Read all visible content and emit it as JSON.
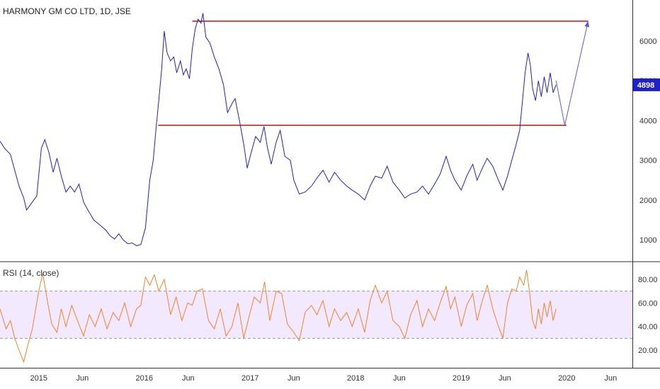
{
  "header": {
    "title": "HARMONY GM CO LTD, 1D, JSE"
  },
  "indicator": {
    "title": "RSI (14, close)"
  },
  "colors": {
    "price_line": "#2020c8",
    "level_line": "#e8191b",
    "projection": "#5b5bd6",
    "rsi_line": "#f0822e",
    "rsi_band": "#f3e9ff",
    "badge": "#2020c8",
    "divider": "#333333",
    "axis": "#333333",
    "band_dash": "#9a9a9a"
  },
  "x_axis_labels": [
    "2015",
    "Jun",
    "2016",
    "Jun",
    "2017",
    "Jun",
    "2018",
    "Jun",
    "2019",
    "Jun",
    "2020",
    "Jun"
  ],
  "price_axis_labels": [
    "6000",
    "5000",
    "4000",
    "3000",
    "2000",
    "1000"
  ],
  "rsi_axis_labels": [
    "80.00",
    "60.00",
    "40.00",
    "20.00"
  ],
  "last_price_badge": "4898",
  "chart_data": [
    {
      "type": "line",
      "title": "HARMONY GM CO LTD, 1D, JSE",
      "xlabel": "",
      "ylabel": "",
      "ylim": [
        500,
        6900
      ],
      "x_range": [
        "2014-08-20",
        "2020-08-15"
      ],
      "grid": false,
      "series": [
        {
          "values": [
            [
              "2014-08-20",
              3480
            ],
            [
              "2014-09-05",
              3300
            ],
            [
              "2014-09-25",
              3150
            ],
            [
              "2014-10-10",
              2750
            ],
            [
              "2014-10-25",
              2350
            ],
            [
              "2014-11-10",
              2050
            ],
            [
              "2014-11-20",
              1750
            ],
            [
              "2014-12-10",
              1950
            ],
            [
              "2014-12-25",
              2100
            ],
            [
              "2015-01-10",
              3300
            ],
            [
              "2015-01-22",
              3520
            ],
            [
              "2015-02-05",
              3200
            ],
            [
              "2015-02-20",
              2700
            ],
            [
              "2015-03-05",
              3050
            ],
            [
              "2015-03-20",
              2600
            ],
            [
              "2015-04-05",
              2200
            ],
            [
              "2015-04-20",
              2350
            ],
            [
              "2015-05-05",
              2200
            ],
            [
              "2015-05-20",
              2400
            ],
            [
              "2015-06-05",
              1950
            ],
            [
              "2015-06-20",
              1750
            ],
            [
              "2015-07-10",
              1500
            ],
            [
              "2015-07-30",
              1380
            ],
            [
              "2015-08-20",
              1250
            ],
            [
              "2015-09-05",
              1100
            ],
            [
              "2015-09-20",
              1020
            ],
            [
              "2015-10-05",
              1150
            ],
            [
              "2015-10-20",
              1000
            ],
            [
              "2015-11-05",
              900
            ],
            [
              "2015-11-20",
              920
            ],
            [
              "2015-12-05",
              850
            ],
            [
              "2015-12-20",
              880
            ],
            [
              "2016-01-05",
              1300
            ],
            [
              "2016-01-20",
              2500
            ],
            [
              "2016-02-01",
              3000
            ],
            [
              "2016-02-12",
              3900
            ],
            [
              "2016-02-20",
              4500
            ],
            [
              "2016-03-01",
              5300
            ],
            [
              "2016-03-10",
              6250
            ],
            [
              "2016-03-20",
              5700
            ],
            [
              "2016-04-01",
              5500
            ],
            [
              "2016-04-12",
              5600
            ],
            [
              "2016-04-22",
              5200
            ],
            [
              "2016-05-05",
              5500
            ],
            [
              "2016-05-15",
              5150
            ],
            [
              "2016-05-25",
              5300
            ],
            [
              "2016-06-05",
              5050
            ],
            [
              "2016-06-15",
              5800
            ],
            [
              "2016-06-25",
              6300
            ],
            [
              "2016-07-05",
              6550
            ],
            [
              "2016-07-15",
              6450
            ],
            [
              "2016-07-22",
              6700
            ],
            [
              "2016-08-01",
              6100
            ],
            [
              "2016-08-15",
              5950
            ],
            [
              "2016-08-30",
              5600
            ],
            [
              "2016-09-15",
              5300
            ],
            [
              "2016-10-01",
              4900
            ],
            [
              "2016-10-15",
              4200
            ],
            [
              "2016-11-01",
              4450
            ],
            [
              "2016-11-10",
              4550
            ],
            [
              "2016-11-25",
              4000
            ],
            [
              "2016-12-10",
              3400
            ],
            [
              "2016-12-22",
              2800
            ],
            [
              "2017-01-05",
              3200
            ],
            [
              "2017-01-20",
              3600
            ],
            [
              "2017-02-05",
              3450
            ],
            [
              "2017-02-18",
              3850
            ],
            [
              "2017-03-01",
              3350
            ],
            [
              "2017-03-15",
              2900
            ],
            [
              "2017-04-01",
              3450
            ],
            [
              "2017-04-15",
              3750
            ],
            [
              "2017-05-01",
              3100
            ],
            [
              "2017-05-20",
              3000
            ],
            [
              "2017-06-01",
              2500
            ],
            [
              "2017-06-20",
              2150
            ],
            [
              "2017-07-10",
              2200
            ],
            [
              "2017-08-01",
              2350
            ],
            [
              "2017-08-20",
              2550
            ],
            [
              "2017-09-10",
              2750
            ],
            [
              "2017-10-01",
              2450
            ],
            [
              "2017-10-20",
              2700
            ],
            [
              "2017-11-10",
              2500
            ],
            [
              "2017-12-01",
              2350
            ],
            [
              "2017-12-20",
              2250
            ],
            [
              "2018-01-10",
              2150
            ],
            [
              "2018-02-01",
              2000
            ],
            [
              "2018-02-20",
              2350
            ],
            [
              "2018-03-10",
              2600
            ],
            [
              "2018-04-01",
              2550
            ],
            [
              "2018-04-20",
              2850
            ],
            [
              "2018-05-10",
              2450
            ],
            [
              "2018-06-01",
              2250
            ],
            [
              "2018-06-20",
              2050
            ],
            [
              "2018-07-10",
              2150
            ],
            [
              "2018-08-01",
              2200
            ],
            [
              "2018-08-20",
              2350
            ],
            [
              "2018-09-10",
              2150
            ],
            [
              "2018-10-01",
              2400
            ],
            [
              "2018-10-20",
              2650
            ],
            [
              "2018-11-10",
              3100
            ],
            [
              "2018-11-25",
              2750
            ],
            [
              "2018-12-10",
              2500
            ],
            [
              "2019-01-01",
              2250
            ],
            [
              "2019-01-20",
              2600
            ],
            [
              "2019-02-10",
              2900
            ],
            [
              "2019-02-25",
              2500
            ],
            [
              "2019-03-15",
              2800
            ],
            [
              "2019-04-01",
              3050
            ],
            [
              "2019-04-20",
              2850
            ],
            [
              "2019-05-10",
              2500
            ],
            [
              "2019-05-25",
              2250
            ],
            [
              "2019-06-10",
              2600
            ],
            [
              "2019-06-25",
              3000
            ],
            [
              "2019-07-10",
              3400
            ],
            [
              "2019-07-22",
              3750
            ],
            [
              "2019-08-01",
              4500
            ],
            [
              "2019-08-10",
              5200
            ],
            [
              "2019-08-20",
              5700
            ],
            [
              "2019-08-28",
              5400
            ],
            [
              "2019-09-05",
              4800
            ],
            [
              "2019-09-15",
              4500
            ],
            [
              "2019-09-25",
              5000
            ],
            [
              "2019-10-05",
              4600
            ],
            [
              "2019-10-15",
              5100
            ],
            [
              "2019-10-25",
              4700
            ],
            [
              "2019-11-05",
              5200
            ],
            [
              "2019-11-15",
              4700
            ],
            [
              "2019-11-25",
              4898
            ]
          ]
        }
      ],
      "levels": [
        {
          "value": 6500,
          "from": "2016-06-15",
          "to": "2020-03-15"
        },
        {
          "value": 3880,
          "from": "2016-02-18",
          "to": "2019-12-31"
        }
      ],
      "projection_path": [
        [
          "2019-11-25",
          5000
        ],
        [
          "2019-12-25",
          3880
        ],
        [
          "2020-03-15",
          6500
        ]
      ]
    },
    {
      "type": "line",
      "title": "RSI (14, close)",
      "xlabel": "",
      "ylabel": "",
      "ylim": [
        0,
        100
      ],
      "x_range": [
        "2014-08-20",
        "2020-08-15"
      ],
      "band": [
        30,
        70
      ],
      "grid": false,
      "series": [
        {
          "values": [
            [
              "2014-08-20",
              55
            ],
            [
              "2014-09-10",
              38
            ],
            [
              "2014-09-25",
              45
            ],
            [
              "2014-10-10",
              30
            ],
            [
              "2014-10-25",
              20
            ],
            [
              "2014-11-10",
              10
            ],
            [
              "2014-11-25",
              25
            ],
            [
              "2014-12-10",
              38
            ],
            [
              "2015-01-01",
              70
            ],
            [
              "2015-01-15",
              85
            ],
            [
              "2015-02-01",
              60
            ],
            [
              "2015-02-15",
              42
            ],
            [
              "2015-03-05",
              35
            ],
            [
              "2015-03-20",
              55
            ],
            [
              "2015-04-05",
              40
            ],
            [
              "2015-04-25",
              58
            ],
            [
              "2015-05-15",
              45
            ],
            [
              "2015-06-05",
              32
            ],
            [
              "2015-06-25",
              50
            ],
            [
              "2015-07-15",
              40
            ],
            [
              "2015-08-05",
              55
            ],
            [
              "2015-08-25",
              38
            ],
            [
              "2015-09-15",
              52
            ],
            [
              "2015-10-05",
              45
            ],
            [
              "2015-10-25",
              60
            ],
            [
              "2015-11-15",
              40
            ],
            [
              "2015-12-05",
              55
            ],
            [
              "2015-12-20",
              58
            ],
            [
              "2016-01-05",
              82
            ],
            [
              "2016-01-20",
              75
            ],
            [
              "2016-02-05",
              84
            ],
            [
              "2016-02-20",
              70
            ],
            [
              "2016-03-10",
              80
            ],
            [
              "2016-04-01",
              50
            ],
            [
              "2016-04-20",
              65
            ],
            [
              "2016-05-10",
              45
            ],
            [
              "2016-05-30",
              60
            ],
            [
              "2016-06-15",
              58
            ],
            [
              "2016-07-01",
              70
            ],
            [
              "2016-07-20",
              72
            ],
            [
              "2016-08-10",
              45
            ],
            [
              "2016-08-30",
              38
            ],
            [
              "2016-09-20",
              55
            ],
            [
              "2016-10-10",
              32
            ],
            [
              "2016-10-30",
              40
            ],
            [
              "2016-11-20",
              60
            ],
            [
              "2016-12-10",
              30
            ],
            [
              "2016-12-28",
              48
            ],
            [
              "2017-01-15",
              65
            ],
            [
              "2017-02-05",
              60
            ],
            [
              "2017-02-20",
              78
            ],
            [
              "2017-03-10",
              45
            ],
            [
              "2017-04-01",
              70
            ],
            [
              "2017-04-20",
              68
            ],
            [
              "2017-05-10",
              42
            ],
            [
              "2017-06-01",
              35
            ],
            [
              "2017-06-20",
              28
            ],
            [
              "2017-07-10",
              52
            ],
            [
              "2017-08-01",
              58
            ],
            [
              "2017-08-20",
              50
            ],
            [
              "2017-09-10",
              62
            ],
            [
              "2017-10-01",
              40
            ],
            [
              "2017-10-20",
              55
            ],
            [
              "2017-11-10",
              45
            ],
            [
              "2017-12-01",
              52
            ],
            [
              "2017-12-20",
              40
            ],
            [
              "2018-01-10",
              55
            ],
            [
              "2018-02-01",
              35
            ],
            [
              "2018-02-20",
              62
            ],
            [
              "2018-03-10",
              75
            ],
            [
              "2018-04-01",
              60
            ],
            [
              "2018-04-20",
              70
            ],
            [
              "2018-05-10",
              45
            ],
            [
              "2018-06-01",
              40
            ],
            [
              "2018-06-20",
              30
            ],
            [
              "2018-07-10",
              50
            ],
            [
              "2018-08-01",
              62
            ],
            [
              "2018-08-20",
              40
            ],
            [
              "2018-09-10",
              55
            ],
            [
              "2018-10-01",
              45
            ],
            [
              "2018-10-20",
              60
            ],
            [
              "2018-11-10",
              74
            ],
            [
              "2018-11-25",
              55
            ],
            [
              "2018-12-10",
              65
            ],
            [
              "2019-01-01",
              40
            ],
            [
              "2019-01-20",
              58
            ],
            [
              "2019-02-10",
              68
            ],
            [
              "2019-02-25",
              45
            ],
            [
              "2019-03-15",
              62
            ],
            [
              "2019-04-01",
              75
            ],
            [
              "2019-04-20",
              55
            ],
            [
              "2019-05-10",
              40
            ],
            [
              "2019-05-25",
              30
            ],
            [
              "2019-06-10",
              60
            ],
            [
              "2019-06-25",
              72
            ],
            [
              "2019-07-10",
              70
            ],
            [
              "2019-07-22",
              82
            ],
            [
              "2019-08-05",
              75
            ],
            [
              "2019-08-15",
              88
            ],
            [
              "2019-08-25",
              70
            ],
            [
              "2019-09-05",
              45
            ],
            [
              "2019-09-15",
              38
            ],
            [
              "2019-09-25",
              55
            ],
            [
              "2019-10-05",
              42
            ],
            [
              "2019-10-15",
              60
            ],
            [
              "2019-10-25",
              48
            ],
            [
              "2019-11-05",
              62
            ],
            [
              "2019-11-15",
              45
            ],
            [
              "2019-11-25",
              55
            ]
          ]
        }
      ]
    }
  ]
}
